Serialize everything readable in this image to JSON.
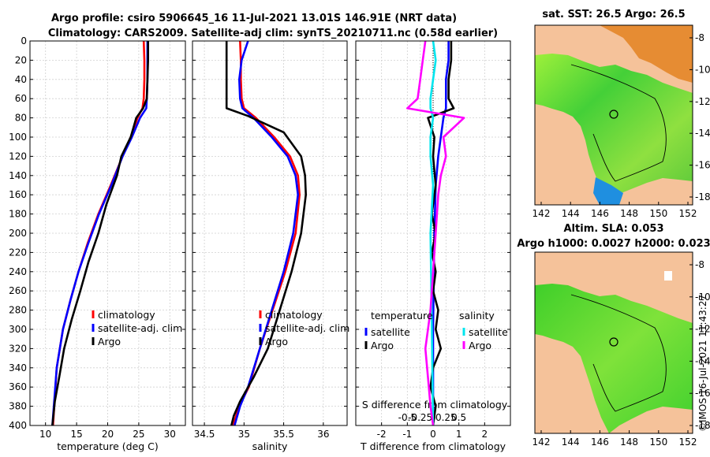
{
  "header": {
    "title_line1": "Argo profile: csiro 5906645_16 11-Jul-2021 13.01S 146.91E (NRT data)",
    "title_line2": "Climatology: CARS2009. Satellite-adj clim: synTS_20210711.nc (0.58d earlier)",
    "credit": "©IMOS 16-Jul-2021 11:43:27"
  },
  "colors": {
    "climatology": "#ff0000",
    "satellite": "#0000ff",
    "argo": "#000000",
    "sal_satellite": "#00e5ee",
    "sal_argo": "#ff00ff",
    "land": "#f5c29a",
    "grid": "#d0d0d0"
  },
  "chart_data": [
    {
      "id": "temperature",
      "type": "line",
      "xlabel": "temperature (deg C)",
      "xlim": [
        7.5,
        32.5
      ],
      "ylim": [
        0,
        400
      ],
      "y_reversed": true,
      "xticks": [
        10,
        15,
        20,
        25,
        30
      ],
      "yticks": [
        0,
        20,
        40,
        60,
        80,
        100,
        120,
        140,
        160,
        180,
        200,
        220,
        240,
        260,
        280,
        300,
        320,
        340,
        360,
        380,
        400
      ],
      "legend": [
        "climatology",
        "satellite-adj. clim",
        "Argo"
      ],
      "series": [
        {
          "name": "climatology",
          "color": "#ff0000",
          "x": [
            25.8,
            25.9,
            25.9,
            25.8,
            25.6,
            24.8,
            23.7,
            22.4,
            20.5,
            18.5,
            16.8,
            15.3,
            14.0,
            12.8,
            11.8,
            11.2
          ],
          "y": [
            0,
            20,
            40,
            60,
            70,
            80,
            100,
            120,
            150,
            180,
            210,
            240,
            270,
            300,
            340,
            400
          ]
        },
        {
          "name": "satellite-adj. clim",
          "color": "#0000ff",
          "x": [
            26.4,
            26.4,
            26.4,
            26.3,
            26.2,
            25.2,
            23.9,
            22.4,
            20.6,
            18.6,
            16.9,
            15.3,
            14.0,
            12.8,
            11.8,
            11.1
          ],
          "y": [
            0,
            20,
            40,
            60,
            70,
            80,
            100,
            120,
            150,
            180,
            210,
            240,
            270,
            300,
            340,
            400
          ]
        },
        {
          "name": "Argo",
          "color": "#000000",
          "x": [
            26.5,
            26.5,
            26.4,
            26.3,
            25.7,
            24.6,
            23.7,
            22.2,
            21.5,
            19.8,
            18.5,
            16.9,
            15.6,
            14.2,
            13.0,
            12.2,
            11.5,
            11.1
          ],
          "y": [
            0,
            20,
            40,
            60,
            70,
            80,
            100,
            120,
            140,
            170,
            200,
            230,
            260,
            290,
            320,
            350,
            375,
            400
          ]
        }
      ]
    },
    {
      "id": "salinity",
      "type": "line",
      "xlabel": "salinity",
      "xlim": [
        34.35,
        36.3
      ],
      "ylim": [
        0,
        400
      ],
      "y_reversed": true,
      "xticks": [
        34.5,
        35,
        35.5,
        36
      ],
      "xtick_labels": [
        "34.5",
        "35",
        "35.5",
        "36"
      ],
      "legend": [
        "climatology",
        "satellite-adj. clim",
        "Argo"
      ],
      "series": [
        {
          "name": "climatology",
          "color": "#ff0000",
          "x": [
            34.95,
            34.96,
            34.96,
            34.97,
            35.0,
            35.15,
            35.38,
            35.58,
            35.68,
            35.7,
            35.65,
            35.52,
            35.36,
            35.2,
            35.06,
            34.94,
            34.86
          ],
          "y": [
            0,
            20,
            40,
            60,
            70,
            80,
            100,
            120,
            140,
            160,
            200,
            240,
            280,
            320,
            360,
            380,
            400
          ]
        },
        {
          "name": "satellite-adj. clim",
          "color": "#0000ff",
          "x": [
            35.05,
            34.97,
            34.94,
            34.95,
            34.98,
            35.12,
            35.35,
            35.55,
            35.65,
            35.68,
            35.62,
            35.5,
            35.35,
            35.2,
            35.05,
            34.95,
            34.88
          ],
          "y": [
            0,
            20,
            40,
            60,
            70,
            80,
            100,
            120,
            140,
            160,
            200,
            240,
            280,
            320,
            360,
            380,
            400
          ]
        },
        {
          "name": "Argo",
          "color": "#000000",
          "x": [
            34.78,
            34.78,
            34.78,
            34.78,
            34.78,
            35.05,
            35.5,
            35.72,
            35.77,
            35.78,
            35.72,
            35.6,
            35.45,
            35.3,
            35.12,
            34.95,
            34.87,
            34.84
          ],
          "y": [
            0,
            20,
            40,
            60,
            70,
            78,
            95,
            120,
            140,
            160,
            200,
            240,
            280,
            320,
            350,
            375,
            390,
            400
          ]
        }
      ]
    },
    {
      "id": "differences",
      "type": "line",
      "xlabel": "T difference from climatology",
      "xlabel_top": "S difference from climatology",
      "xlim": [
        -3,
        3
      ],
      "ylim": [
        0,
        400
      ],
      "y_reversed": true,
      "xticks": [
        -2,
        -1,
        0,
        1,
        2
      ],
      "xtick_labels": [
        "-2",
        "-1",
        "0",
        "1",
        "2"
      ],
      "s_tick_positions": [
        -1,
        -0.5,
        0,
        0.5,
        1
      ],
      "s_tick_labels": [
        "-0.5",
        "-0.25",
        "0",
        "0.25",
        "0.5"
      ],
      "legend_temperature_title": "temperature",
      "legend_salinity_title": "salinity",
      "legend_temperature": [
        "satellite",
        "Argo"
      ],
      "legend_salinity": [
        "satellite",
        "Argo"
      ],
      "series": [
        {
          "name": "T satellite",
          "color": "#0000ff",
          "x": [
            0.6,
            0.6,
            0.5,
            0.5,
            0.5,
            0.4,
            0.3,
            0.2,
            0.1,
            0.05,
            0.0,
            0.0
          ],
          "y": [
            0,
            20,
            40,
            60,
            70,
            80,
            100,
            120,
            150,
            200,
            300,
            400
          ]
        },
        {
          "name": "T Argo",
          "color": "#000000",
          "x": [
            0.7,
            0.7,
            0.6,
            0.6,
            0.8,
            -0.2,
            0.05,
            0.0,
            0.1,
            -0.05,
            0.1,
            -0.05,
            0.1,
            0.0,
            0.2,
            0.1,
            0.3,
            0.0,
            -0.1,
            0.1,
            0.0
          ],
          "y": [
            0,
            20,
            40,
            60,
            70,
            80,
            100,
            120,
            150,
            180,
            200,
            220,
            240,
            260,
            280,
            300,
            320,
            340,
            360,
            380,
            400
          ]
        },
        {
          "name": "S satellite",
          "color": "#00e5ee",
          "x": [
            0.0,
            0.1,
            0.0,
            -0.1,
            -0.1,
            0.0,
            -0.1,
            -0.1,
            0.0,
            -0.1,
            -0.05,
            0.0
          ],
          "y": [
            0,
            20,
            40,
            60,
            70,
            80,
            100,
            120,
            150,
            200,
            300,
            400
          ]
        },
        {
          "name": "S Argo",
          "color": "#ff00ff",
          "x": [
            -0.3,
            -0.4,
            -0.5,
            -0.6,
            -1.0,
            1.2,
            0.4,
            0.5,
            0.3,
            0.2,
            0.1,
            0.0,
            -0.1,
            -0.2,
            -0.3,
            -0.2,
            -0.1,
            0.0
          ],
          "y": [
            0,
            20,
            40,
            60,
            70,
            80,
            100,
            120,
            140,
            160,
            200,
            240,
            280,
            300,
            320,
            350,
            380,
            400
          ]
        }
      ]
    }
  ],
  "maps": [
    {
      "id": "sst-map",
      "title": "sat. SST: 26.5 Argo: 26.5",
      "xticks": [
        "142",
        "144",
        "146",
        "148",
        "150",
        "152"
      ],
      "yticks": [
        "-8",
        "-10",
        "-12",
        "-14",
        "-16",
        "-18"
      ]
    },
    {
      "id": "sla-map",
      "title_line1": "Altim. SLA: 0.053",
      "title_line2": "Argo h1000: 0.0027 h2000: 0.023",
      "xticks": [
        "142",
        "144",
        "146",
        "148",
        "150",
        "152"
      ],
      "yticks": [
        "-8",
        "-10",
        "-12",
        "-14",
        "-16",
        "-18"
      ]
    }
  ]
}
